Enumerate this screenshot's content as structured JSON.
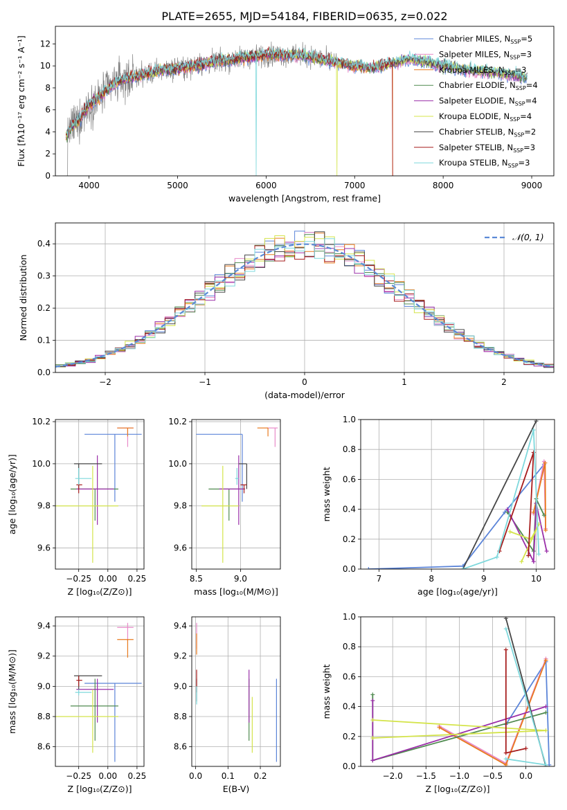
{
  "title": "PLATE=2655, MJD=54184, FIBERID=0635, z=0.022",
  "colors": {
    "Chabrier MILES": "#5b84d8",
    "Salpeter MILES": "#e88ac8",
    "Kroupa MILES": "#e87a1e",
    "Chabrier ELODIE": "#4f8a4f",
    "Salpeter ELODIE": "#9a2ea8",
    "Kroupa ELODIE": "#d4e44a",
    "Chabrier STELIB": "#454545",
    "Salpeter STELIB": "#a61c1c",
    "Kroupa STELIB": "#7ed8dc",
    "data": "#808080",
    "normal": "#5b8ad6"
  },
  "chart_data": [
    {
      "id": "spectrum",
      "type": "line",
      "xlabel": "wavelength [Angstrom, rest frame]",
      "ylabel": "Flux [fλ10⁻¹⁷ erg cm⁻² s⁻¹ A⁻¹]",
      "xlim": [
        3620,
        9250
      ],
      "ylim": [
        0,
        13.6
      ],
      "xticks": [
        4000,
        5000,
        6000,
        7000,
        8000,
        9000
      ],
      "yticks": [
        0,
        2,
        4,
        6,
        8,
        10,
        12
      ],
      "grid": false,
      "legend_position": "top-right",
      "legend": [
        {
          "name": "Chabrier MILES",
          "nssp": "5"
        },
        {
          "name": "Salpeter MILES",
          "nssp": "3"
        },
        {
          "name": "Kroupa MILES",
          "nssp": "3"
        },
        {
          "name": "Chabrier ELODIE",
          "nssp": "4"
        },
        {
          "name": "Salpeter ELODIE",
          "nssp": "4"
        },
        {
          "name": "Kroupa ELODIE",
          "nssp": "4"
        },
        {
          "name": "Chabrier STELIB",
          "nssp": "2"
        },
        {
          "name": "Salpeter STELIB",
          "nssp": "3"
        },
        {
          "name": "Kroupa STELIB",
          "nssp": "3"
        }
      ],
      "continuum": {
        "x": [
          3740,
          3800,
          3900,
          4000,
          4100,
          4200,
          4300,
          4500,
          4800,
          5200,
          5600,
          6000,
          6400,
          6800,
          7000,
          7200,
          7400,
          7600,
          7800,
          8000,
          8300,
          8600,
          8900
        ],
        "y": [
          3.5,
          4.5,
          5.2,
          6.5,
          7.0,
          7.8,
          8.5,
          9.0,
          9.6,
          10.0,
          10.6,
          11.0,
          11.0,
          10.3,
          10.0,
          9.8,
          10.2,
          10.6,
          10.4,
          10.0,
          9.6,
          9.4,
          9.0
        ]
      },
      "data_range": [
        3740,
        8950
      ],
      "model_range": [
        3740,
        8950
      ],
      "short_model_end": 7430,
      "dips": [
        {
          "x": 5890,
          "series": "Kroupa STELIB",
          "y": 0
        },
        {
          "x": 6800,
          "series": "Kroupa ELODIE",
          "y": 0
        },
        {
          "x": 7430,
          "series": "Salpeter STELIB",
          "y": 0
        }
      ]
    },
    {
      "id": "residuals",
      "type": "bar",
      "xlabel": "(data-model)/error",
      "ylabel": "Normed distribution",
      "xlim": [
        -2.5,
        2.5
      ],
      "ylim": [
        0,
        0.465
      ],
      "xticks": [
        -2,
        -1,
        0,
        1,
        2
      ],
      "yticks": [
        0.0,
        0.1,
        0.2,
        0.3,
        0.4
      ],
      "grid": true,
      "bin_width": 0.1,
      "legend": "𝒩(0, 1)",
      "legend_position": "top-right"
    },
    {
      "id": "age_vs_Z",
      "type": "scatter",
      "xlabel": "Z [log₁₀(Z/Z⊙)]",
      "ylabel": "age  [log₁₀(age/yr)]",
      "xlim": [
        -0.45,
        0.31
      ],
      "ylim": [
        9.5,
        10.21
      ],
      "xticks": [
        -0.25,
        0.0,
        0.25
      ],
      "yticks": [
        9.6,
        9.8,
        10.0,
        10.2
      ],
      "grid": true
    },
    {
      "id": "age_vs_mass",
      "type": "scatter",
      "xlabel": "mass [log₁₀(M/M⊙)]",
      "xlim": [
        8.45,
        9.45
      ],
      "ylim": [
        9.5,
        10.21
      ],
      "xticks": [
        8.5,
        9.0
      ],
      "yticks": [
        9.6,
        9.8,
        10.0,
        10.2
      ],
      "grid": true
    },
    {
      "id": "weight_vs_age",
      "type": "line",
      "xlabel": "age  [log₁₀(age/yr)]",
      "ylabel": "mass weight",
      "xlim": [
        6.65,
        10.35
      ],
      "ylim": [
        0,
        1.0
      ],
      "xticks": [
        7,
        8,
        9,
        10
      ],
      "yticks": [
        0.0,
        0.2,
        0.4,
        0.6,
        0.8,
        1.0
      ],
      "grid": true
    },
    {
      "id": "mass_vs_Z",
      "type": "scatter",
      "xlabel": "Z [log₁₀(Z/Z⊙)]",
      "ylabel": "mass [log₁₀(M/M⊙)]",
      "xlim": [
        -0.45,
        0.31
      ],
      "ylim": [
        8.47,
        9.46
      ],
      "xticks": [
        -0.25,
        0.0,
        0.25
      ],
      "yticks": [
        8.6,
        8.8,
        9.0,
        9.2,
        9.4
      ],
      "grid": true
    },
    {
      "id": "mass_vs_ebv",
      "type": "scatter",
      "xlabel": "E(B-V)",
      "xlim": [
        -0.012,
        0.262
      ],
      "ylim": [
        8.47,
        9.46
      ],
      "xticks": [
        0.0,
        0.1,
        0.2
      ],
      "yticks": [
        8.6,
        8.8,
        9.0,
        9.2,
        9.4
      ],
      "grid": true
    },
    {
      "id": "weight_vs_Z",
      "type": "line",
      "xlabel": "Z [log₁₀(Z/Z⊙)]",
      "ylabel": "mass weight",
      "xlim": [
        -2.48,
        0.43
      ],
      "ylim": [
        0,
        1.0
      ],
      "xticks": [
        -2.0,
        -1.5,
        -1.0,
        -0.5,
        0.0
      ],
      "yticks": [
        0.0,
        0.2,
        0.4,
        0.6,
        0.8,
        1.0
      ],
      "grid": true
    }
  ],
  "fits": [
    {
      "name": "Chabrier MILES",
      "Z": 0.06,
      "Zerr": [
        -0.2,
        0.29
      ],
      "age": 10.14,
      "ageerr": [
        9.82,
        10.14
      ],
      "mass": 9.02,
      "masserr": [
        8.5,
        9.02
      ],
      "mZl": -0.2,
      "mZh": 0.29,
      "ebv": 0.25,
      "ebverr": [
        8.5,
        9.05
      ]
    },
    {
      "name": "Salpeter MILES",
      "Z": 0.17,
      "Zerr": [
        0.08,
        0.22
      ],
      "age": 10.17,
      "ageerr": [
        10.08,
        10.17
      ],
      "mass": 9.39,
      "masserr": [
        9.3,
        9.42
      ],
      "ebv": 0.003,
      "ebverr": [
        9.25,
        9.42
      ]
    },
    {
      "name": "Kroupa MILES",
      "Z": 0.17,
      "Zerr": [
        0.08,
        0.22
      ],
      "age": 10.17,
      "ageerr": [
        10.13,
        10.17
      ],
      "mass": 9.31,
      "masserr": [
        9.19,
        9.31
      ],
      "ebv": 0.003,
      "ebverr": [
        9.21,
        9.35
      ]
    },
    {
      "name": "Chabrier ELODIE",
      "Z": -0.11,
      "Zerr": [
        -0.32,
        0.09
      ],
      "age": 9.88,
      "ageerr": [
        9.73,
        9.88
      ],
      "mass": 8.87,
      "masserr": [
        8.64,
        9.05
      ],
      "ebv": 0.165,
      "ebverr": [
        8.64,
        9.05
      ]
    },
    {
      "name": "Salpeter ELODIE",
      "Z": -0.09,
      "Zerr": [
        -0.27,
        0.05
      ],
      "age": 9.88,
      "ageerr": [
        9.71,
        10.04
      ],
      "mass": 8.98,
      "masserr": [
        8.76,
        9.05
      ],
      "ebv": 0.165,
      "ebverr": [
        8.76,
        9.11
      ]
    },
    {
      "name": "Kroupa ELODIE",
      "Z": -0.13,
      "Zerr": [
        -0.45,
        0.09
      ],
      "age": 9.8,
      "ageerr": [
        9.53,
        9.99
      ],
      "mass": 8.8,
      "masserr": [
        8.56,
        8.98
      ],
      "ebv": 0.175,
      "ebverr": [
        8.56,
        8.93
      ]
    },
    {
      "name": "Chabrier STELIB",
      "Z": -0.25,
      "Zerr": [
        -0.29,
        -0.05
      ],
      "age": 10.0,
      "ageerr": [
        9.88,
        10.0
      ],
      "mass": 9.07,
      "masserr": [
        8.98,
        9.07
      ],
      "ebv": 0.003,
      "ebverr": [
        8.9,
        9.05
      ]
    },
    {
      "name": "Salpeter STELIB",
      "Z": -0.25,
      "Zerr": [
        -0.27,
        -0.22
      ],
      "age": 9.9,
      "ageerr": [
        9.86,
        9.9
      ],
      "mass": 9.04,
      "masserr": [
        9.0,
        9.07
      ],
      "ebv": 0.003,
      "ebverr": [
        8.96,
        9.11
      ]
    },
    {
      "name": "Kroupa STELIB",
      "Z": -0.25,
      "Zerr": [
        -0.28,
        -0.14
      ],
      "age": 9.93,
      "ageerr": [
        9.9,
        9.98
      ],
      "mass": 8.96,
      "masserr": [
        8.94,
        8.98
      ],
      "ebv": 0.003,
      "ebverr": [
        8.88,
        9.0
      ]
    }
  ],
  "weights_age": {
    "Chabrier MILES": [
      [
        6.8,
        0.0
      ],
      [
        8.6,
        0.02
      ],
      [
        9.4,
        0.38
      ],
      [
        10.15,
        0.7
      ]
    ],
    "Salpeter MILES": [
      [
        9.95,
        0.37
      ],
      [
        10.15,
        0.72
      ],
      [
        10.18,
        0.27
      ]
    ],
    "Kroupa MILES": [
      [
        9.95,
        0.38
      ],
      [
        10.17,
        0.71
      ],
      [
        10.18,
        0.26
      ]
    ],
    "Chabrier ELODIE": [
      [
        9.45,
        0.38
      ],
      [
        9.95,
        0.12
      ],
      [
        10.0,
        0.47
      ],
      [
        10.15,
        0.36
      ]
    ],
    "Salpeter ELODIE": [
      [
        9.45,
        0.4
      ],
      [
        9.95,
        0.05
      ],
      [
        10.0,
        0.44
      ],
      [
        10.2,
        0.12
      ]
    ],
    "Kroupa ELODIE": [
      [
        9.5,
        0.25
      ],
      [
        9.9,
        0.2
      ],
      [
        10.05,
        0.3
      ],
      [
        9.72,
        0.05
      ]
    ],
    "Chabrier STELIB": [
      [
        8.6,
        0.0
      ],
      [
        10.0,
        0.99
      ]
    ],
    "Salpeter STELIB": [
      [
        9.3,
        0.12
      ],
      [
        9.95,
        0.78
      ],
      [
        9.85,
        0.09
      ]
    ],
    "Kroupa STELIB": [
      [
        8.6,
        0.0
      ],
      [
        9.25,
        0.08
      ],
      [
        9.95,
        0.93
      ],
      [
        10.05,
        0.1
      ]
    ]
  },
  "weights_Z": {
    "Chabrier MILES": [
      [
        -0.3,
        0.28
      ],
      [
        0.3,
        0.7
      ],
      [
        0.35,
        0.01
      ]
    ],
    "Salpeter MILES": [
      [
        -1.3,
        0.27
      ],
      [
        -0.3,
        0.02
      ],
      [
        0.3,
        0.72
      ]
    ],
    "Kroupa MILES": [
      [
        -1.3,
        0.26
      ],
      [
        -0.3,
        0.01
      ],
      [
        0.3,
        0.71
      ]
    ],
    "Chabrier ELODIE": [
      [
        -2.3,
        0.48
      ],
      [
        -2.3,
        0.04
      ],
      [
        0.3,
        0.36
      ]
    ],
    "Salpeter ELODIE": [
      [
        -2.3,
        0.44
      ],
      [
        -2.3,
        0.04
      ],
      [
        0.3,
        0.4
      ]
    ],
    "Kroupa ELODIE": [
      [
        -2.3,
        0.31
      ],
      [
        0.3,
        0.24
      ],
      [
        -2.3,
        0.19
      ]
    ],
    "Chabrier STELIB": [
      [
        -0.3,
        0.99
      ],
      [
        0.3,
        0.0
      ]
    ],
    "Salpeter STELIB": [
      [
        -0.3,
        0.78
      ],
      [
        -0.3,
        0.09
      ],
      [
        0.0,
        0.12
      ]
    ],
    "Kroupa STELIB": [
      [
        -0.3,
        0.92
      ],
      [
        0.3,
        0.01
      ],
      [
        -0.3,
        0.05
      ]
    ]
  }
}
